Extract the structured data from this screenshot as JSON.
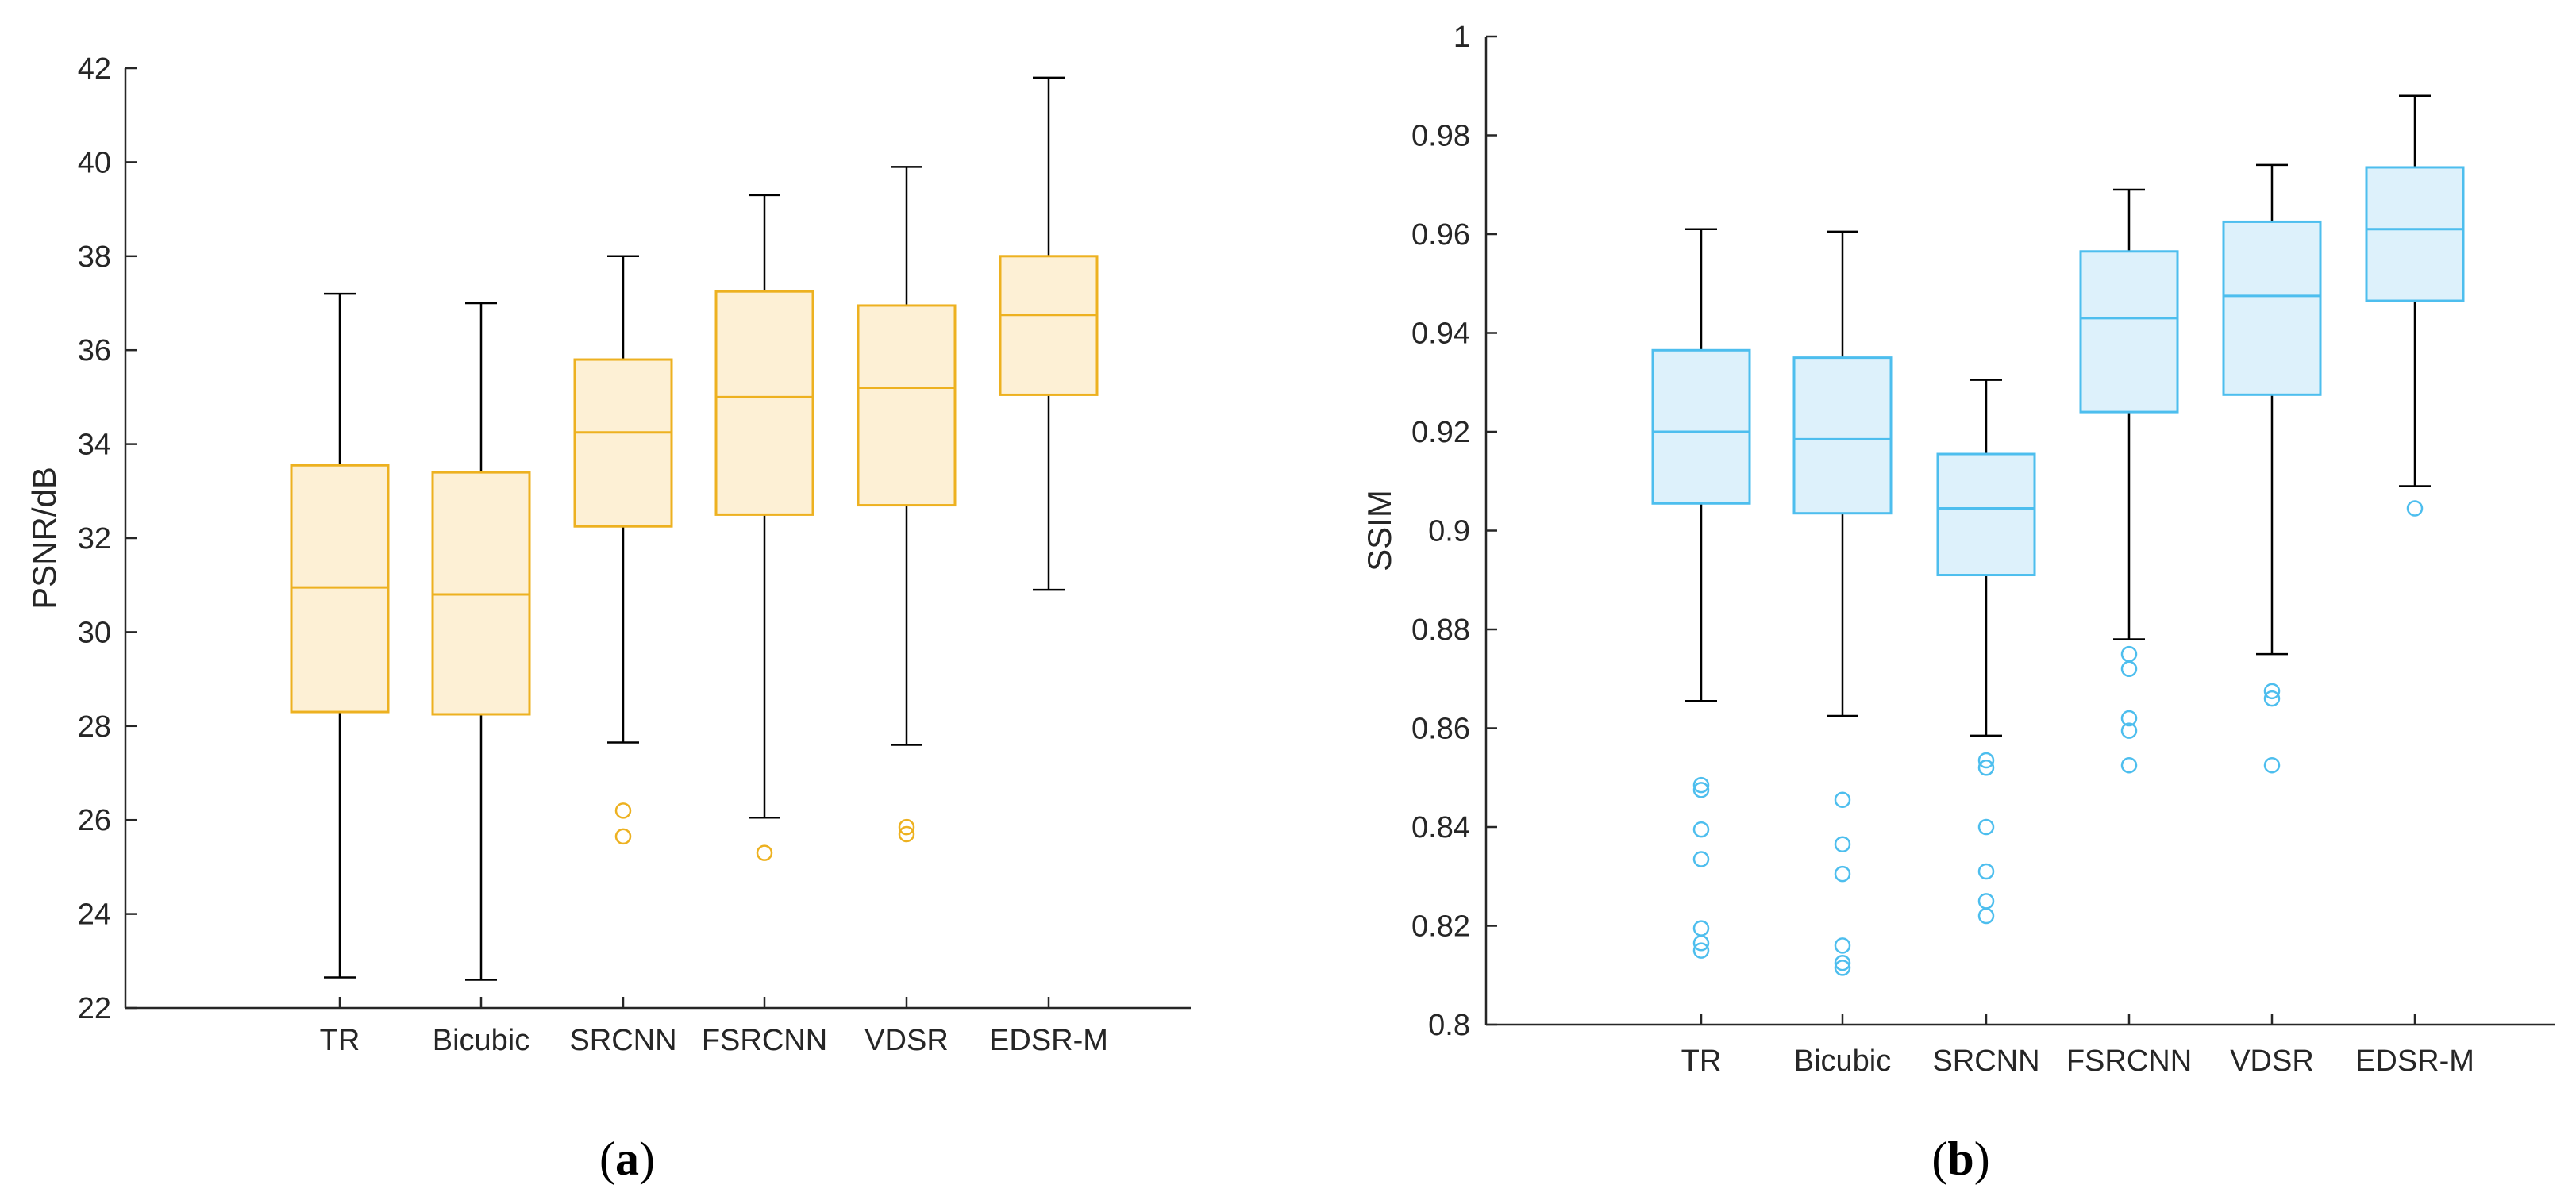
{
  "figure": {
    "panels": [
      {
        "label_open": "(",
        "label_letter": "a",
        "label_close": ")"
      },
      {
        "label_open": "(",
        "label_letter": "b",
        "label_close": ")"
      }
    ]
  },
  "chart_data": [
    {
      "type": "box",
      "title": "",
      "xlabel": "",
      "ylabel": "PSNR/dB",
      "ylim": [
        22,
        42
      ],
      "yticks": [
        22,
        24,
        26,
        28,
        30,
        32,
        34,
        36,
        38,
        40,
        42
      ],
      "ytick_labels": [
        "22",
        "24",
        "26",
        "28",
        "30",
        "32",
        "34",
        "36",
        "38",
        "40",
        "42"
      ],
      "color": "#EDB120",
      "fill": "#FDF0D5",
      "categories": [
        "TR",
        "Bicubic",
        "SRCNN",
        "FSRCNN",
        "VDSR",
        "EDSR-M"
      ],
      "boxes": [
        {
          "min": 22.65,
          "q1": 28.3,
          "median": 30.95,
          "q3": 33.55,
          "max": 37.2,
          "outliers": []
        },
        {
          "min": 22.6,
          "q1": 28.25,
          "median": 30.8,
          "q3": 33.4,
          "max": 37.0,
          "outliers": []
        },
        {
          "min": 27.65,
          "q1": 32.25,
          "median": 34.25,
          "q3": 35.8,
          "max": 38.0,
          "outliers": [
            26.2,
            25.65
          ]
        },
        {
          "min": 26.05,
          "q1": 32.5,
          "median": 35.0,
          "q3": 37.25,
          "max": 39.3,
          "outliers": [
            25.3
          ]
        },
        {
          "min": 27.6,
          "q1": 32.7,
          "median": 35.2,
          "q3": 36.95,
          "max": 39.9,
          "outliers": [
            25.85,
            25.7
          ]
        },
        {
          "min": 30.9,
          "q1": 35.05,
          "median": 36.75,
          "q3": 38.0,
          "max": 41.8,
          "outliers": []
        }
      ]
    },
    {
      "type": "box",
      "title": "",
      "xlabel": "",
      "ylabel": "SSIM",
      "ylim": [
        0.8,
        1.0
      ],
      "yticks": [
        0.8,
        0.82,
        0.84,
        0.86,
        0.88,
        0.9,
        0.92,
        0.94,
        0.96,
        0.98,
        1.0
      ],
      "ytick_labels": [
        "0.8",
        "0.82",
        "0.84",
        "0.86",
        "0.88",
        "0.9",
        "0.92",
        "0.94",
        "0.96",
        "0.98",
        "1"
      ],
      "color": "#4DBEEE",
      "fill": "#DDF1FB",
      "categories": [
        "TR",
        "Bicubic",
        "SRCNN",
        "FSRCNN",
        "VDSR",
        "EDSR-M"
      ],
      "boxes": [
        {
          "min": 0.8655,
          "q1": 0.9055,
          "median": 0.92,
          "q3": 0.9365,
          "max": 0.961,
          "outliers": [
            0.8485,
            0.8475,
            0.8395,
            0.8335,
            0.8195,
            0.8165,
            0.815
          ]
        },
        {
          "min": 0.8625,
          "q1": 0.9035,
          "median": 0.9185,
          "q3": 0.935,
          "max": 0.9605,
          "outliers": [
            0.8455,
            0.8365,
            0.8305,
            0.816,
            0.8125,
            0.8115
          ]
        },
        {
          "min": 0.8585,
          "q1": 0.891,
          "median": 0.9045,
          "q3": 0.9155,
          "max": 0.9305,
          "outliers": [
            0.8535,
            0.852,
            0.84,
            0.831,
            0.825,
            0.822
          ]
        },
        {
          "min": 0.878,
          "q1": 0.924,
          "median": 0.943,
          "q3": 0.9565,
          "max": 0.969,
          "outliers": [
            0.875,
            0.872,
            0.862,
            0.8595,
            0.8525
          ]
        },
        {
          "min": 0.875,
          "q1": 0.9275,
          "median": 0.9475,
          "q3": 0.9625,
          "max": 0.974,
          "outliers": [
            0.8675,
            0.866,
            0.8525
          ]
        },
        {
          "min": 0.909,
          "q1": 0.9465,
          "median": 0.961,
          "q3": 0.9735,
          "max": 0.988,
          "outliers": [
            0.9045
          ]
        }
      ]
    }
  ]
}
